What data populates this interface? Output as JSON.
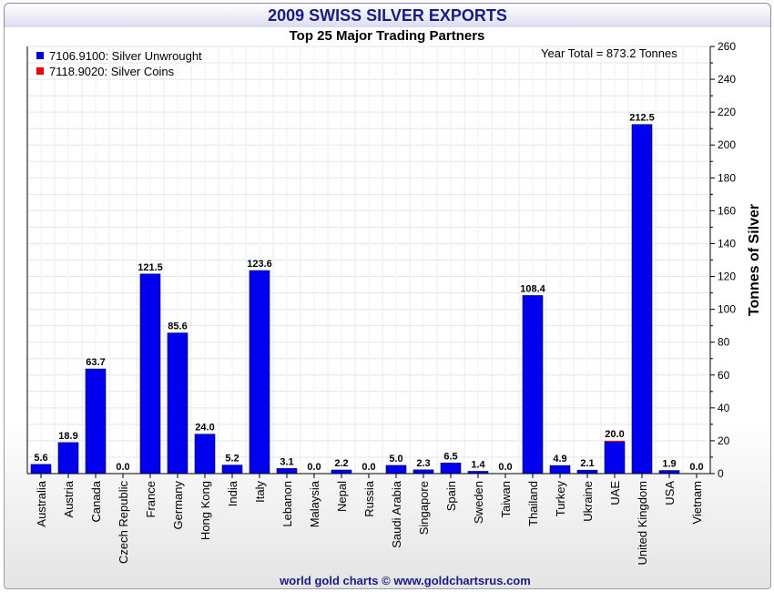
{
  "chart_data": {
    "type": "bar",
    "title": "2009 SWISS SILVER EXPORTS",
    "subtitle": "Top 25 Major Trading Partners",
    "ylabel": "Tonnes of Silver",
    "xlabel": "",
    "ylim": [
      0,
      260
    ],
    "ytick_step": 20,
    "grid": true,
    "legend_position": "top-left",
    "annotation": "Year Total = 873.2 Tonnes",
    "categories": [
      "Australia",
      "Austria",
      "Canada",
      "Czech Republic",
      "France",
      "Germany",
      "Hong Kong",
      "India",
      "Italy",
      "Lebanon",
      "Malaysia",
      "Nepal",
      "Russia",
      "Saudi Arabia",
      "Singapore",
      "Spain",
      "Sweden",
      "Taiwan",
      "Thailand",
      "Turkey",
      "Ukraine",
      "UAE",
      "United Kingdom",
      "USA",
      "Vietnam"
    ],
    "series": [
      {
        "name": "7106.9100: Silver Unwrought",
        "color": "#0000ee",
        "values": [
          5.6,
          18.9,
          63.7,
          0.0,
          121.5,
          85.6,
          24.0,
          5.2,
          123.6,
          3.1,
          0.0,
          2.2,
          0.0,
          5.0,
          2.3,
          6.5,
          1.4,
          0.0,
          108.4,
          4.9,
          2.1,
          19.4,
          212.5,
          1.9,
          0.0
        ]
      },
      {
        "name": "7118.9020: Silver Coins",
        "color": "#ee0000",
        "values": [
          0,
          0,
          0,
          0,
          0,
          0,
          0,
          0,
          0,
          0,
          0,
          0,
          0,
          0,
          0,
          0,
          0,
          0,
          0,
          0,
          0,
          0.6,
          0,
          0,
          0
        ]
      }
    ],
    "data_labels": [
      "5.6",
      "18.9",
      "63.7",
      "0.0",
      "121.5",
      "85.6",
      "24.0",
      "5.2",
      "123.6",
      "3.1",
      "0.0",
      "2.2",
      "0.0",
      "5.0",
      "2.3",
      "6.5",
      "1.4",
      "0.0",
      "108.4",
      "4.9",
      "2.1",
      "20.0",
      "212.5",
      "1.9",
      "0.0"
    ]
  },
  "footer": "world gold charts © www.goldchartsrus.com"
}
